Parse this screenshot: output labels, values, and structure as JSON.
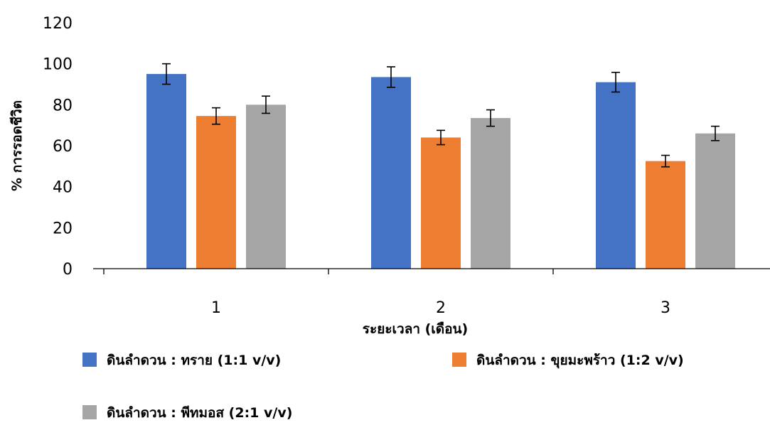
{
  "chart_data": {
    "type": "bar",
    "categories": [
      "1",
      "2",
      "3"
    ],
    "xlabel": "ระยะเวลา (เดือน)",
    "ylabel": "% การรอดชีวิต",
    "ylim": [
      0,
      120
    ],
    "yticks": [
      0,
      20,
      40,
      60,
      80,
      100,
      120
    ],
    "grid": false,
    "legend_position": "bottom",
    "error_bars": true,
    "series": [
      {
        "name": "ดินลำดวน : ทราย (1:1 v/v)",
        "color": "#4472C4",
        "values": [
          95,
          93.5,
          91
        ],
        "errors": [
          5,
          5,
          4.8
        ]
      },
      {
        "name": "ดินลำดวน : ขุยมะพร้าว (1:2 v/v)",
        "color": "#ED7D31",
        "values": [
          74.5,
          64,
          52.5
        ],
        "errors": [
          4,
          3.5,
          2.8
        ]
      },
      {
        "name": "ดินลำดวน : พีทมอส (2:1 v/v)",
        "color": "#A5A5A5",
        "values": [
          80,
          73.5,
          66
        ],
        "errors": [
          4.2,
          4,
          3.5
        ]
      }
    ]
  }
}
